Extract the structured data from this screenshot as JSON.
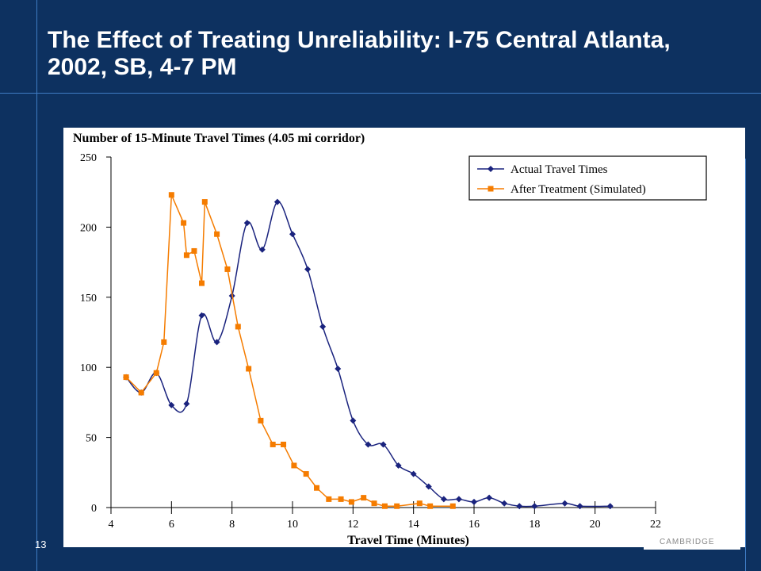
{
  "slide": {
    "title": "The Effect of Treating Unreliability: I-75 Central Atlanta, 2002, SB, 4-7 PM",
    "number": "13",
    "footer_text": "CAMBRIDGE"
  },
  "colors": {
    "background": "#0d3160",
    "accent_lines": "#3f7cc4",
    "actual_series": "#1a237e",
    "simulated_series": "#f57c00"
  },
  "chart_data": {
    "type": "line",
    "title": "Number of 15-Minute Travel Times (4.05 mi corridor)",
    "xlabel": "Travel Time (Minutes)",
    "ylabel": "",
    "xlim": [
      4,
      22
    ],
    "ylim": [
      0,
      250
    ],
    "xticks": [
      4,
      6,
      8,
      10,
      12,
      14,
      16,
      18,
      20,
      22
    ],
    "yticks": [
      0,
      50,
      100,
      150,
      200,
      250
    ],
    "grid": false,
    "legend_position": "top-right",
    "series": [
      {
        "name": "Actual Travel Times",
        "marker": "diamond",
        "color": "#1a237e",
        "points": [
          [
            4.5,
            93
          ],
          [
            5.0,
            82
          ],
          [
            5.5,
            96
          ],
          [
            6.0,
            73
          ],
          [
            6.5,
            74
          ],
          [
            7.0,
            137
          ],
          [
            7.5,
            118
          ],
          [
            8.0,
            151
          ],
          [
            8.5,
            203
          ],
          [
            9.0,
            184
          ],
          [
            9.5,
            218
          ],
          [
            10.0,
            195
          ],
          [
            10.5,
            170
          ],
          [
            11.0,
            129
          ],
          [
            11.5,
            99
          ],
          [
            12.0,
            62
          ],
          [
            12.5,
            45
          ],
          [
            13.0,
            45
          ],
          [
            13.5,
            30
          ],
          [
            14.0,
            24
          ],
          [
            14.5,
            15
          ],
          [
            15.0,
            6
          ],
          [
            15.5,
            6
          ],
          [
            16.0,
            4
          ],
          [
            16.5,
            7
          ],
          [
            17.0,
            3
          ],
          [
            17.5,
            1
          ],
          [
            18.0,
            1
          ],
          [
            19.0,
            3
          ],
          [
            19.5,
            1
          ],
          [
            20.5,
            1
          ]
        ]
      },
      {
        "name": "After Treatment (Simulated)",
        "marker": "square",
        "color": "#f57c00",
        "points": [
          [
            4.5,
            93
          ],
          [
            5.0,
            82
          ],
          [
            5.5,
            96
          ],
          [
            5.75,
            118
          ],
          [
            6.0,
            223
          ],
          [
            6.4,
            203
          ],
          [
            6.5,
            180
          ],
          [
            6.75,
            183
          ],
          [
            7.0,
            160
          ],
          [
            7.1,
            218
          ],
          [
            7.5,
            195
          ],
          [
            7.85,
            170
          ],
          [
            8.2,
            129
          ],
          [
            8.55,
            99
          ],
          [
            8.95,
            62
          ],
          [
            9.35,
            45
          ],
          [
            9.7,
            45
          ],
          [
            10.05,
            30
          ],
          [
            10.45,
            24
          ],
          [
            10.8,
            14
          ],
          [
            11.2,
            6
          ],
          [
            11.6,
            6
          ],
          [
            11.95,
            4
          ],
          [
            12.35,
            7
          ],
          [
            12.7,
            3
          ],
          [
            13.05,
            1
          ],
          [
            13.45,
            1
          ],
          [
            14.2,
            3
          ],
          [
            14.55,
            1
          ],
          [
            15.3,
            1
          ]
        ]
      }
    ]
  }
}
